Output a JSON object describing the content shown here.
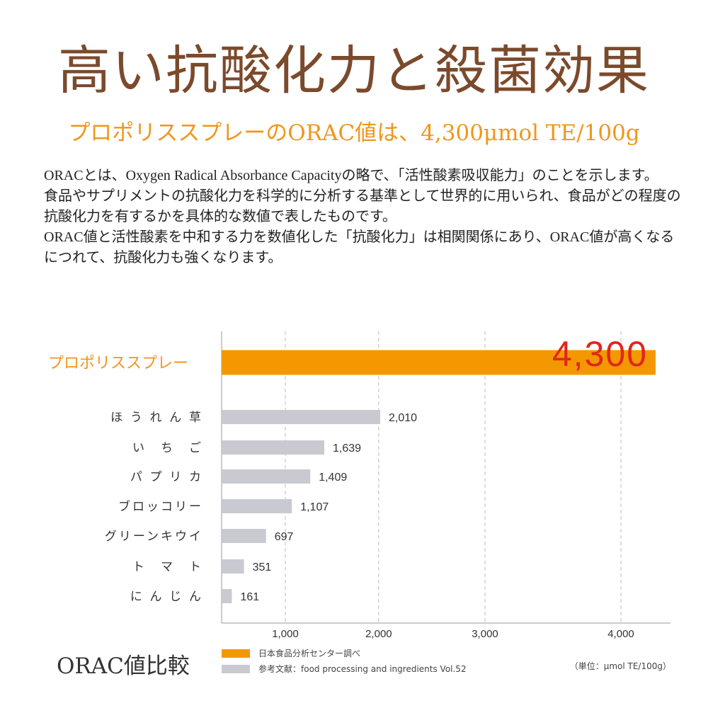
{
  "title": "高い抗酸化力と殺菌効果",
  "subtitle": "プロポリススプレーのORAC値は、4,300μmol TE/100g",
  "body": [
    "ORACとは、Oxygen Radical Absorbance Capacityの略で、「活性酸素吸収能力」のことを示します。",
    "食品やサプリメントの抗酸化力を科学的に分析する基準として世界的に用いられ、食品がどの程度の抗酸化力を有するかを具体的な数値で表したものです。",
    "ORAC値と活性酸素を中和する力を数値化した「抗酸化力」は相関関係にあり、ORAC値が高くなるにつれて、抗酸化力も強くなります。"
  ],
  "chart_title": "ORAC値比較",
  "legend": [
    {
      "label": "日本食品分析センター調べ",
      "color": "#f39800"
    },
    {
      "label": "参考文献：food processing and ingredients Vol.52",
      "color": "#c9c9d1"
    }
  ],
  "unit": "（単位：μmol TE/100g）",
  "chart_data": {
    "type": "bar",
    "orientation": "horizontal",
    "title": "ORAC値比較",
    "xlabel": "",
    "ylabel": "",
    "categories": [
      "プロポリススプレー",
      "ほうれん草",
      "いちご",
      "パプリカ",
      "ブロッコリー",
      "グリーンキウイ",
      "トマト",
      "にんじん"
    ],
    "category_display": [
      "プロポリススプレー",
      "ほ う れ ん 草",
      "い　ち　ご",
      "パ プ リ カ",
      "ブロッコリー",
      "グリーンキウイ",
      "ト　マ　ト",
      "に ん じ ん"
    ],
    "values": [
      4300,
      2010,
      1639,
      1409,
      1107,
      697,
      351,
      161
    ],
    "value_labels": [
      "4,300",
      "2,010",
      "1,639",
      "1,409",
      "1,107",
      "697",
      "351",
      "161"
    ],
    "colors": [
      "#f39800",
      "#c9c9d1",
      "#c9c9d1",
      "#c9c9d1",
      "#c9c9d1",
      "#c9c9d1",
      "#c9c9d1",
      "#c9c9d1"
    ],
    "highlight_label_color": "#e1261c",
    "highlight_category_color": "#f0961c",
    "xticks": [
      1000,
      2000,
      3000,
      4000
    ],
    "xtick_labels": [
      "1,000",
      "2,000",
      "3,000",
      "4,000"
    ],
    "xlim": [
      0,
      4500
    ],
    "grid": true,
    "legend_position": "bottom"
  }
}
